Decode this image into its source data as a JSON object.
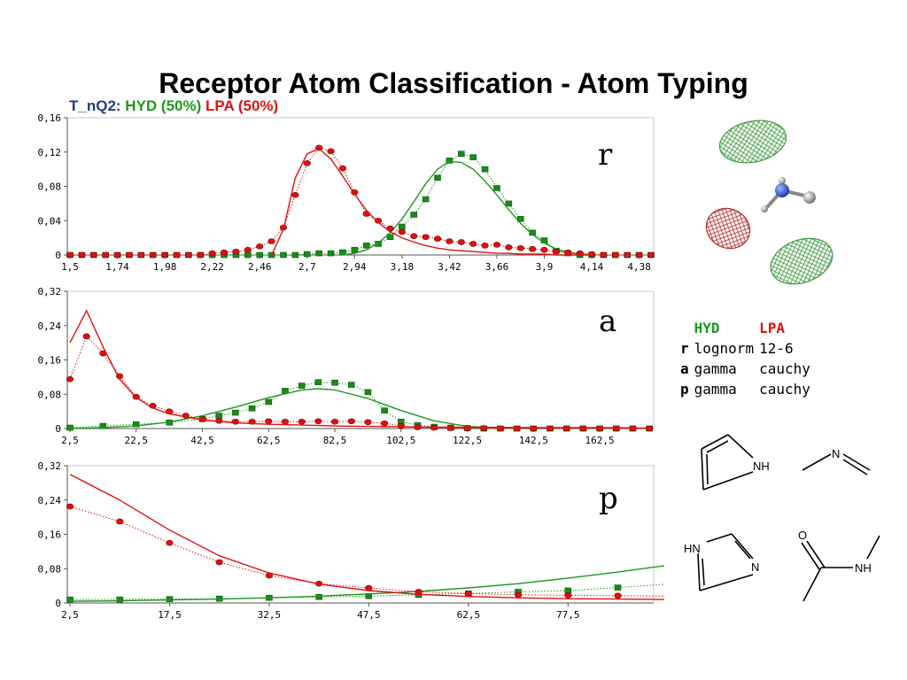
{
  "title": "Receptor Atom Classification - Atom Typing",
  "legend_header": {
    "label": "T_nQ2:",
    "hyd": "HYD (50%)",
    "lpa": "LPA (50%)"
  },
  "colors": {
    "hyd": "#1a9a1a",
    "lpa": "#e01010"
  },
  "param_table": {
    "headers": [
      "",
      "HYD",
      "LPA"
    ],
    "rows": [
      {
        "key": "r",
        "hyd": "lognorm",
        "lpa": "12-6"
      },
      {
        "key": "a",
        "hyd": "gamma",
        "lpa": "cauchy"
      },
      {
        "key": "p",
        "hyd": "gamma",
        "lpa": "cauchy"
      }
    ]
  },
  "molecules": {
    "pyrrole_label": "NH",
    "imine_label": "N",
    "imidazole_labels": [
      "HN",
      "N"
    ],
    "amide_labels": [
      "O",
      "NH"
    ]
  },
  "chart_data": [
    {
      "type": "line",
      "panel_label": "r",
      "ylim": [
        0,
        0.16
      ],
      "yticks": [
        "0",
        "0,04",
        "0,08",
        "0,12",
        "0,16"
      ],
      "xlim": [
        1.5,
        4.44
      ],
      "xticks": [
        "1,5",
        "1,74",
        "1,98",
        "2,22",
        "2,46",
        "2,7",
        "2,94",
        "3,18",
        "3,42",
        "3,66",
        "3,9",
        "4,14",
        "4,38"
      ],
      "grid": false,
      "series": [
        {
          "name": "HYD",
          "style": "markers-dotted",
          "x": [
            1.5,
            1.56,
            1.62,
            1.68,
            1.74,
            1.8,
            1.86,
            1.92,
            1.98,
            2.04,
            2.1,
            2.16,
            2.22,
            2.28,
            2.34,
            2.4,
            2.46,
            2.52,
            2.58,
            2.64,
            2.7,
            2.76,
            2.82,
            2.88,
            2.94,
            3.0,
            3.06,
            3.12,
            3.18,
            3.24,
            3.3,
            3.36,
            3.42,
            3.48,
            3.54,
            3.6,
            3.66,
            3.72,
            3.78,
            3.84,
            3.9,
            3.96,
            4.02,
            4.08,
            4.14,
            4.2,
            4.26,
            4.32,
            4.38,
            4.44
          ],
          "y": [
            0,
            0,
            0,
            0,
            0,
            0,
            0,
            0,
            0,
            0,
            0,
            0,
            0,
            0,
            0,
            0,
            0,
            0,
            0,
            0,
            0.001,
            0.002,
            0.002,
            0.003,
            0.006,
            0.011,
            0.013,
            0.021,
            0.033,
            0.047,
            0.065,
            0.09,
            0.11,
            0.118,
            0.114,
            0.1,
            0.078,
            0.06,
            0.042,
            0.026,
            0.017,
            0.005,
            0.002,
            0,
            0,
            0,
            0,
            0,
            0,
            0
          ]
        },
        {
          "name": "HYD",
          "style": "fit-line",
          "x": [
            2.88,
            2.94,
            3.0,
            3.06,
            3.12,
            3.18,
            3.24,
            3.3,
            3.36,
            3.42,
            3.48,
            3.54,
            3.6,
            3.66,
            3.72,
            3.78,
            3.84,
            3.9,
            3.96,
            4.02,
            4.08,
            4.14
          ],
          "y": [
            0,
            0.002,
            0.006,
            0.014,
            0.026,
            0.042,
            0.062,
            0.083,
            0.1,
            0.109,
            0.108,
            0.1,
            0.086,
            0.07,
            0.053,
            0.037,
            0.024,
            0.014,
            0.007,
            0.003,
            0.001,
            0
          ]
        },
        {
          "name": "LPA",
          "style": "markers-dotted",
          "x": [
            1.5,
            1.56,
            1.62,
            1.68,
            1.74,
            1.8,
            1.86,
            1.92,
            1.98,
            2.04,
            2.1,
            2.16,
            2.22,
            2.28,
            2.34,
            2.4,
            2.46,
            2.52,
            2.58,
            2.64,
            2.7,
            2.76,
            2.82,
            2.88,
            2.94,
            3.0,
            3.06,
            3.12,
            3.18,
            3.24,
            3.3,
            3.36,
            3.42,
            3.48,
            3.54,
            3.6,
            3.66,
            3.72,
            3.78,
            3.84,
            3.9,
            3.96,
            4.02,
            4.08,
            4.14,
            4.2,
            4.26,
            4.32,
            4.38,
            4.44
          ],
          "y": [
            0,
            0,
            0,
            0,
            0,
            0,
            0,
            0,
            0,
            0,
            0,
            0,
            0.002,
            0.003,
            0.004,
            0.006,
            0.01,
            0.016,
            0.032,
            0.07,
            0.107,
            0.125,
            0.121,
            0.101,
            0.073,
            0.048,
            0.04,
            0.031,
            0.027,
            0.022,
            0.021,
            0.019,
            0.016,
            0.015,
            0.013,
            0.011,
            0.012,
            0.009,
            0.008,
            0.007,
            0.006,
            0.004,
            0.003,
            0.002,
            0.001,
            0,
            0,
            0,
            0,
            0
          ]
        },
        {
          "name": "LPA",
          "style": "fit-line",
          "x": [
            2.52,
            2.58,
            2.64,
            2.7,
            2.76,
            2.82,
            2.88,
            2.94,
            3.0,
            3.06,
            3.12,
            3.18,
            3.24,
            3.3,
            3.36,
            3.42,
            3.48,
            3.54,
            3.6,
            3.66,
            3.72,
            3.78,
            3.84,
            3.9,
            3.96,
            4.02,
            4.08,
            4.14
          ],
          "y": [
            0,
            0.03,
            0.09,
            0.118,
            0.124,
            0.112,
            0.092,
            0.071,
            0.052,
            0.038,
            0.027,
            0.02,
            0.015,
            0.011,
            0.008,
            0.006,
            0.005,
            0.004,
            0.003,
            0.002,
            0.002,
            0.001,
            0.001,
            0.001,
            0,
            0,
            0,
            0
          ]
        }
      ]
    },
    {
      "type": "line",
      "panel_label": "a",
      "ylim": [
        0,
        0.32
      ],
      "yticks": [
        "0",
        "0,08",
        "0,16",
        "0,24",
        "0,32"
      ],
      "xlim": [
        2.5,
        178
      ],
      "xticks": [
        "2,5",
        "22,5",
        "42,5",
        "62,5",
        "82,5",
        "102,5",
        "122,5",
        "142,5",
        "162,5"
      ],
      "grid": false,
      "series": [
        {
          "name": "HYD",
          "style": "markers-dotted",
          "x": [
            2.5,
            12.5,
            22.5,
            32.5,
            42.5,
            47.5,
            52.5,
            57.5,
            62.5,
            67.5,
            72.5,
            77.5,
            82.5,
            87.5,
            92.5,
            97.5,
            102.5,
            107.5,
            112.5,
            117.5,
            122.5,
            127.5,
            132.5,
            137.5,
            142.5,
            147.5,
            152.5,
            157.5,
            162.5,
            167.5,
            172.5,
            177.5
          ],
          "y": [
            0.002,
            0.006,
            0.01,
            0.014,
            0.022,
            0.03,
            0.037,
            0.047,
            0.062,
            0.088,
            0.1,
            0.108,
            0.107,
            0.102,
            0.085,
            0.042,
            0.016,
            0.008,
            0.004,
            0.002,
            0.001,
            0,
            0,
            0,
            0,
            0,
            0,
            0,
            0,
            0,
            0,
            0
          ]
        },
        {
          "name": "HYD",
          "style": "fit-line",
          "x": [
            2.5,
            12.5,
            22.5,
            32.5,
            42.5,
            52.5,
            62.5,
            72.5,
            77.5,
            82.5,
            92.5,
            102.5,
            112.5,
            122.5,
            132.5,
            142.5
          ],
          "y": [
            0,
            0.002,
            0.006,
            0.015,
            0.03,
            0.05,
            0.072,
            0.09,
            0.093,
            0.09,
            0.07,
            0.042,
            0.018,
            0.005,
            0.001,
            0
          ]
        },
        {
          "name": "LPA",
          "style": "markers-dotted",
          "x": [
            2.5,
            7.5,
            12.5,
            17.5,
            22.5,
            27.5,
            32.5,
            37.5,
            42.5,
            47.5,
            52.5,
            57.5,
            62.5,
            67.5,
            72.5,
            77.5,
            82.5,
            87.5,
            92.5,
            97.5,
            102.5,
            107.5,
            112.5,
            117.5,
            122.5,
            127.5,
            132.5,
            137.5,
            142.5,
            147.5,
            152.5,
            157.5,
            162.5,
            167.5,
            172.5,
            177.5
          ],
          "y": [
            0.115,
            0.215,
            0.175,
            0.122,
            0.074,
            0.053,
            0.04,
            0.03,
            0.022,
            0.018,
            0.016,
            0.016,
            0.017,
            0.016,
            0.016,
            0.017,
            0.016,
            0.017,
            0.015,
            0.012,
            0.006,
            0.003,
            0.002,
            0.001,
            0.001,
            0.001,
            0,
            0,
            0,
            0,
            0,
            0,
            0,
            0,
            0,
            0
          ]
        },
        {
          "name": "LPA",
          "style": "fit-line",
          "x": [
            2.5,
            7.5,
            12.5,
            17.5,
            22.5,
            27.5,
            32.5,
            42.5,
            52.5,
            62.5,
            72.5,
            82.5,
            92.5,
            102.5,
            112.5,
            122.5,
            142.5,
            162.5,
            177.5
          ],
          "y": [
            0.2,
            0.275,
            0.19,
            0.115,
            0.072,
            0.048,
            0.034,
            0.02,
            0.013,
            0.01,
            0.008,
            0.006,
            0.005,
            0.004,
            0.003,
            0.003,
            0.002,
            0.002,
            0.001
          ]
        }
      ]
    },
    {
      "type": "line",
      "panel_label": "p",
      "ylim": [
        0,
        0.32
      ],
      "yticks": [
        "0",
        "0,08",
        "0,16",
        "0,24",
        "0,32"
      ],
      "xlim": [
        2.5,
        90
      ],
      "xticks": [
        "2,5",
        "17,5",
        "32,5",
        "47,5",
        "62,5",
        "77,5"
      ],
      "grid": false,
      "series": [
        {
          "name": "HYD",
          "style": "markers-dotted",
          "x": [
            2.5,
            10,
            17.5,
            25,
            32.5,
            40,
            47.5,
            55,
            62.5,
            70,
            77.5,
            85,
            92.5
          ],
          "y": [
            0.008,
            0.008,
            0.009,
            0.01,
            0.012,
            0.014,
            0.016,
            0.019,
            0.022,
            0.026,
            0.029,
            0.036,
            0.044
          ]
        },
        {
          "name": "HYD",
          "style": "fit-line",
          "x": [
            2.5,
            10,
            17.5,
            25,
            32.5,
            40,
            47.5,
            55,
            62.5,
            70,
            77.5,
            85,
            92.5
          ],
          "y": [
            0.004,
            0.005,
            0.007,
            0.009,
            0.012,
            0.016,
            0.021,
            0.027,
            0.035,
            0.045,
            0.058,
            0.072,
            0.088
          ]
        },
        {
          "name": "LPA",
          "style": "markers-dotted",
          "x": [
            2.5,
            10,
            17.5,
            25,
            32.5,
            40,
            47.5,
            55,
            62.5,
            70,
            77.5,
            85,
            92.5
          ],
          "y": [
            0.225,
            0.19,
            0.14,
            0.095,
            0.064,
            0.045,
            0.035,
            0.026,
            0.022,
            0.019,
            0.018,
            0.017,
            0.016
          ]
        },
        {
          "name": "LPA",
          "style": "fit-line",
          "x": [
            2.5,
            10,
            17.5,
            25,
            32.5,
            40,
            47.5,
            55,
            62.5,
            70,
            77.5,
            85,
            92.5
          ],
          "y": [
            0.3,
            0.24,
            0.17,
            0.11,
            0.07,
            0.044,
            0.029,
            0.02,
            0.015,
            0.012,
            0.01,
            0.009,
            0.008
          ]
        }
      ]
    }
  ]
}
